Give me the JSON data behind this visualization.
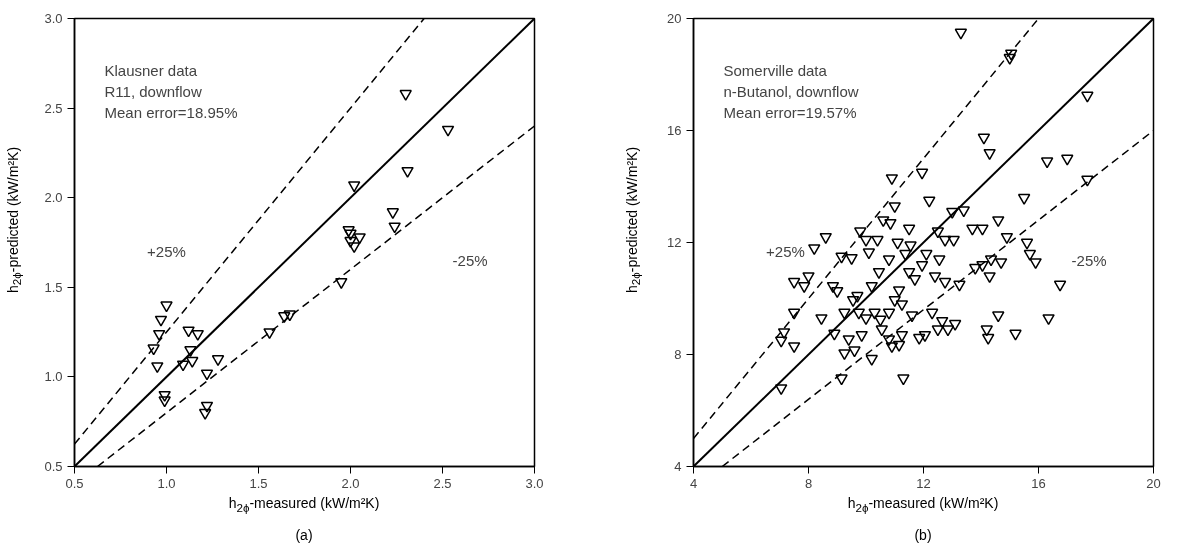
{
  "chart_data": [
    {
      "type": "scatter",
      "xlabel": "h$_{2ϕ}$-measured (kW/m²K)",
      "ylabel": "h$_{2ϕ}$-predicted (kW/m²K)",
      "grid": false,
      "xlim": [
        0.5,
        3.0
      ],
      "ylim": [
        0.5,
        3.0
      ],
      "xticks": [
        {
          "value": 0.5,
          "label": "0.5"
        },
        {
          "value": 1.0,
          "label": "1.0"
        },
        {
          "value": 1.5,
          "label": "1.5"
        },
        {
          "value": 2.0,
          "label": "2.0"
        },
        {
          "value": 2.5,
          "label": "2.5"
        },
        {
          "value": 3.0,
          "label": "3.0"
        }
      ],
      "yticks": [
        {
          "value": 0.5,
          "label": "0.5"
        },
        {
          "value": 1.0,
          "label": "1.0"
        },
        {
          "value": 1.5,
          "label": "1.5"
        },
        {
          "value": 2.0,
          "label": "2.0"
        },
        {
          "value": 2.5,
          "label": "2.5"
        },
        {
          "value": 3.0,
          "label": "3.0"
        }
      ],
      "annotations": [
        "Klausner data",
        "R11, downflow",
        "Mean error=18.95%",
        "+25%",
        "-25%",
        "(a)"
      ],
      "series": [
        {
          "marker": "triangle",
          "color": "#000000",
          "x": [
            0.93,
            0.95,
            0.96,
            0.97,
            1.0,
            0.99,
            0.99,
            1.09,
            1.12,
            1.13,
            1.14,
            1.17,
            1.22,
            1.22,
            1.21,
            1.28,
            1.56,
            1.64,
            1.67,
            1.95,
            1.99,
            2.0,
            2.02,
            2.05,
            2.02,
            2.23,
            2.24,
            2.31,
            2.3,
            2.53,
            2.0
          ],
          "values": [
            1.16,
            1.06,
            1.24,
            1.32,
            1.4,
            0.9,
            0.87,
            1.07,
            1.26,
            1.15,
            1.09,
            1.24,
            1.02,
            0.84,
            0.8,
            1.1,
            1.25,
            1.34,
            1.35,
            1.53,
            1.82,
            1.76,
            1.73,
            1.78,
            2.07,
            1.92,
            1.84,
            2.15,
            2.58,
            2.38,
            1.8
          ]
        },
        {
          "type": "line",
          "marker": "none",
          "color": "#000000",
          "line_style": "solid",
          "x": [
            0.5,
            3.0
          ],
          "values": [
            0.5,
            3.0
          ]
        },
        {
          "type": "line",
          "marker": "none",
          "color": "#000000",
          "line_style": "dashed",
          "x": [
            0.5,
            2.4
          ],
          "values": [
            0.625,
            3.0
          ]
        },
        {
          "type": "line",
          "marker": "none",
          "color": "#000000",
          "line_style": "dashed",
          "x": [
            0.625,
            3.0
          ],
          "values": [
            0.5,
            2.4
          ]
        }
      ]
    },
    {
      "type": "scatter",
      "xlabel": "h$_{2ϕ}$-measured (kW/m²K)",
      "ylabel": "h$_{2ϕ}$-predicted (kW/m²K)",
      "grid": false,
      "xlim": [
        4,
        20
      ],
      "ylim": [
        4,
        20
      ],
      "xticks": [
        4,
        8,
        12,
        16,
        20
      ],
      "yticks": [
        4,
        8,
        12,
        16,
        20
      ],
      "annotations": [
        "Somerville data",
        "n-Butanol, downflow",
        "Mean error=19.57%",
        "+25%",
        "-25%",
        "(b)"
      ],
      "series": [
        {
          "marker": "triangle",
          "color": "#000000",
          "x": [
            13.3,
            15.0,
            15.05,
            17.7,
            14.1,
            14.3,
            16.3,
            17.0,
            17.7,
            10.9,
            11.95,
            15.5,
            12.2,
            11.0,
            13.0,
            13.4,
            8.6,
            8.2,
            9.8,
            10.6,
            10.85,
            11.5,
            10.0,
            10.4,
            11.1,
            11.55,
            12.5,
            12.75,
            13.05,
            13.7,
            14.05,
            14.6,
            14.9,
            15.6,
            15.9,
            15.7,
            9.15,
            9.5,
            10.1,
            10.8,
            12.1,
            12.55,
            14.35,
            14.7,
            11.37,
            14.05,
            13.8,
            8.0,
            7.5,
            7.85,
            8.85,
            9.0,
            9.55,
            9.7,
            10.2,
            10.45,
            11.15,
            11.0,
            11.5,
            11.7,
            11.95,
            12.4,
            12.75,
            13.25,
            14.3,
            16.75,
            7.5,
            8.45,
            9.25,
            9.75,
            10.0,
            10.3,
            10.5,
            10.8,
            11.25,
            11.6,
            12.3,
            12.65,
            13.1,
            14.6,
            16.35,
            7.15,
            7.05,
            7.5,
            8.9,
            9.4,
            9.85,
            9.25,
            9.6,
            10.55,
            10.8,
            10.9,
            11.25,
            11.15,
            11.85,
            12.05,
            12.5,
            12.85,
            14.2,
            14.25,
            15.2,
            10.2,
            9.15,
            11.3,
            7.05
          ],
          "values": [
            19.5,
            18.6,
            18.75,
            17.25,
            15.75,
            15.2,
            14.9,
            15.0,
            14.25,
            14.3,
            14.5,
            13.6,
            13.5,
            13.3,
            13.1,
            13.15,
            12.2,
            11.8,
            12.4,
            12.8,
            12.7,
            12.5,
            12.1,
            12.1,
            12.0,
            11.9,
            12.4,
            12.1,
            12.1,
            12.5,
            12.5,
            12.8,
            12.2,
            12.0,
            11.3,
            11.6,
            11.5,
            11.45,
            11.65,
            11.4,
            11.6,
            11.4,
            11.4,
            11.3,
            11.6,
            11.2,
            11.1,
            10.8,
            10.6,
            10.45,
            10.45,
            10.27,
            9.95,
            10.1,
            10.45,
            10.95,
            10.3,
            9.95,
            10.95,
            10.7,
            11.2,
            10.8,
            10.6,
            10.5,
            10.8,
            10.5,
            9.5,
            9.3,
            9.5,
            9.5,
            9.3,
            9.5,
            9.25,
            9.5,
            9.8,
            9.4,
            9.5,
            9.2,
            9.1,
            9.4,
            9.3,
            8.8,
            8.5,
            8.3,
            8.75,
            8.55,
            8.7,
            8.05,
            8.15,
            8.9,
            8.55,
            8.3,
            8.7,
            8.35,
            8.6,
            8.7,
            8.9,
            8.9,
            8.9,
            8.6,
            8.75,
            7.85,
            7.15,
            7.15,
            6.8
          ]
        },
        {
          "type": "line",
          "marker": "none",
          "color": "#000000",
          "line_style": "solid",
          "x": [
            4,
            20
          ],
          "values": [
            4,
            20
          ]
        },
        {
          "type": "line",
          "marker": "none",
          "color": "#000000",
          "line_style": "dashed",
          "x": [
            4,
            16
          ],
          "values": [
            5,
            20
          ]
        },
        {
          "type": "line",
          "marker": "none",
          "color": "#000000",
          "line_style": "dashed",
          "x": [
            5,
            20
          ],
          "values": [
            4,
            16
          ]
        }
      ]
    }
  ]
}
